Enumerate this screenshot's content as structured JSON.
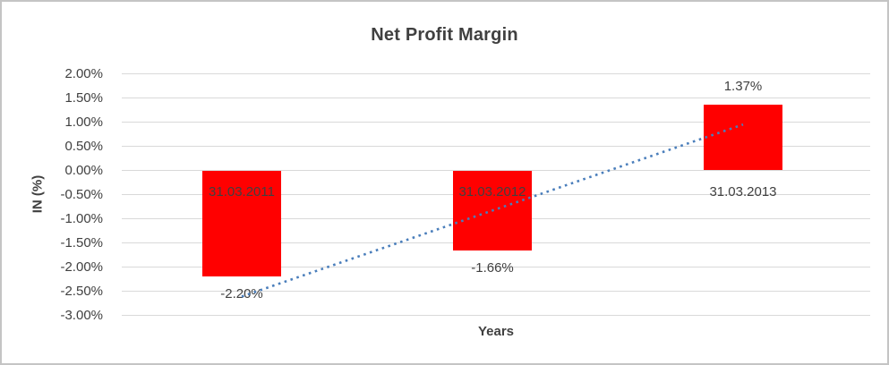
{
  "chart_data": {
    "type": "bar",
    "title": "Net Profit Margin",
    "xlabel": "Years",
    "ylabel": "IN (%)",
    "categories": [
      "31.03.2011",
      "31.03.2012",
      "31.03.2013"
    ],
    "values": [
      -2.2,
      -1.66,
      1.37
    ],
    "value_labels": [
      "-2.20%",
      "-1.66%",
      "1.37%"
    ],
    "ylim": [
      -3.0,
      2.0
    ],
    "ytick_values": [
      2.0,
      1.5,
      1.0,
      0.5,
      0.0,
      -0.5,
      -1.0,
      -1.5,
      -2.0,
      -2.5,
      -3.0
    ],
    "ytick_labels": [
      "2.00%",
      "1.50%",
      "1.00%",
      "0.50%",
      "0.00%",
      "-0.50%",
      "-1.00%",
      "-1.50%",
      "-2.00%",
      "-2.50%",
      "-3.00%"
    ],
    "grid": true,
    "legend": "none",
    "trendline": {
      "type": "linear",
      "style": "dotted",
      "values_at_ends": [
        -2.61,
        0.95
      ]
    }
  },
  "colors": {
    "background": "#FFFFFF",
    "frame_border": "#C4C4C4",
    "gridline": "#D9D9D9",
    "text": "#404040",
    "bar": "#FF0000",
    "trendline": "#4A7EBB"
  }
}
